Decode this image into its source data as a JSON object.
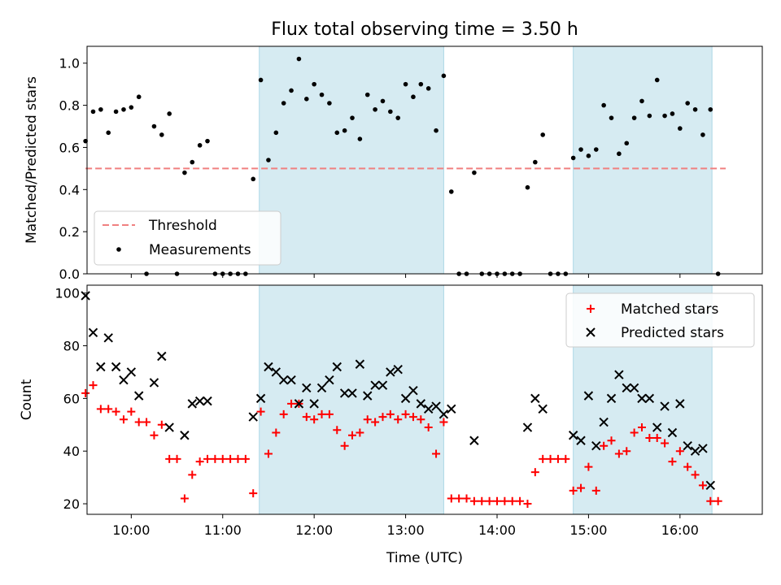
{
  "title": "Flux total observing time = 3.50 h",
  "colors": {
    "threshold": "#f08080",
    "shade": "#add8e6",
    "matched": "#ff0000",
    "predicted": "#000000",
    "measurement": "#000000"
  },
  "chart_data": [
    {
      "type": "scatter",
      "ylabel": "Matched/Predicted stars",
      "ylim": [
        0,
        1.08
      ],
      "xlim": [
        "09:31",
        "16:54"
      ],
      "yticks": [
        "0.0",
        "0.2",
        "0.4",
        "0.6",
        "0.8",
        "1.0"
      ],
      "shaded_intervals": [
        [
          "11:24",
          "13:25"
        ],
        [
          "14:50",
          "16:21"
        ]
      ],
      "threshold": {
        "value": 0.5,
        "x": [
          "09:30",
          "16:30"
        ]
      },
      "legend": [
        "Threshold",
        "Measurements"
      ],
      "legend_position": "lower left",
      "series": [
        {
          "name": "Measurements",
          "points": [
            [
              "09:30",
              0.63
            ],
            [
              "09:35",
              0.77
            ],
            [
              "09:40",
              0.78
            ],
            [
              "09:45",
              0.67
            ],
            [
              "09:50",
              0.77
            ],
            [
              "09:55",
              0.78
            ],
            [
              "10:00",
              0.79
            ],
            [
              "10:05",
              0.84
            ],
            [
              "10:10",
              0.0
            ],
            [
              "10:15",
              0.7
            ],
            [
              "10:20",
              0.66
            ],
            [
              "10:25",
              0.76
            ],
            [
              "10:30",
              0.0
            ],
            [
              "10:35",
              0.48
            ],
            [
              "10:40",
              0.53
            ],
            [
              "10:45",
              0.61
            ],
            [
              "10:50",
              0.63
            ],
            [
              "10:55",
              0.0
            ],
            [
              "11:00",
              0.0
            ],
            [
              "11:05",
              0.0
            ],
            [
              "11:10",
              0.0
            ],
            [
              "11:15",
              0.0
            ],
            [
              "11:20",
              0.45
            ],
            [
              "11:25",
              0.92
            ],
            [
              "11:30",
              0.54
            ],
            [
              "11:35",
              0.67
            ],
            [
              "11:40",
              0.81
            ],
            [
              "11:45",
              0.87
            ],
            [
              "11:50",
              1.02
            ],
            [
              "11:55",
              0.83
            ],
            [
              "12:00",
              0.9
            ],
            [
              "12:05",
              0.85
            ],
            [
              "12:10",
              0.81
            ],
            [
              "12:15",
              0.67
            ],
            [
              "12:20",
              0.68
            ],
            [
              "12:25",
              0.74
            ],
            [
              "12:30",
              0.64
            ],
            [
              "12:35",
              0.85
            ],
            [
              "12:40",
              0.78
            ],
            [
              "12:45",
              0.82
            ],
            [
              "12:50",
              0.77
            ],
            [
              "12:55",
              0.74
            ],
            [
              "13:00",
              0.9
            ],
            [
              "13:05",
              0.84
            ],
            [
              "13:10",
              0.9
            ],
            [
              "13:15",
              0.88
            ],
            [
              "13:20",
              0.68
            ],
            [
              "13:25",
              0.94
            ],
            [
              "13:30",
              0.39
            ],
            [
              "13:35",
              0.0
            ],
            [
              "13:40",
              0.0
            ],
            [
              "13:45",
              0.48
            ],
            [
              "13:50",
              0.0
            ],
            [
              "13:55",
              0.0
            ],
            [
              "14:00",
              0.0
            ],
            [
              "14:05",
              0.0
            ],
            [
              "14:10",
              0.0
            ],
            [
              "14:15",
              0.0
            ],
            [
              "14:20",
              0.41
            ],
            [
              "14:25",
              0.53
            ],
            [
              "14:30",
              0.66
            ],
            [
              "14:35",
              0.0
            ],
            [
              "14:40",
              0.0
            ],
            [
              "14:45",
              0.0
            ],
            [
              "14:50",
              0.55
            ],
            [
              "14:55",
              0.59
            ],
            [
              "15:00",
              0.56
            ],
            [
              "15:05",
              0.59
            ],
            [
              "15:10",
              0.8
            ],
            [
              "15:15",
              0.74
            ],
            [
              "15:20",
              0.57
            ],
            [
              "15:25",
              0.62
            ],
            [
              "15:30",
              0.74
            ],
            [
              "15:35",
              0.82
            ],
            [
              "15:40",
              0.75
            ],
            [
              "15:45",
              0.92
            ],
            [
              "15:50",
              0.75
            ],
            [
              "15:55",
              0.76
            ],
            [
              "16:00",
              0.69
            ],
            [
              "16:05",
              0.81
            ],
            [
              "16:10",
              0.78
            ],
            [
              "16:15",
              0.66
            ],
            [
              "16:20",
              0.78
            ],
            [
              "16:25",
              0.0
            ]
          ]
        }
      ]
    },
    {
      "type": "scatter",
      "xlabel": "Time (UTC)",
      "ylabel": "Count",
      "ylim": [
        16,
        103
      ],
      "xlim": [
        "09:31",
        "16:54"
      ],
      "yticks": [
        "20",
        "40",
        "60",
        "80",
        "100"
      ],
      "xticks": [
        "10:00",
        "11:00",
        "12:00",
        "13:00",
        "14:00",
        "15:00",
        "16:00"
      ],
      "shaded_intervals": [
        [
          "11:24",
          "13:25"
        ],
        [
          "14:50",
          "16:21"
        ]
      ],
      "legend": [
        "Matched stars",
        "Predicted stars"
      ],
      "legend_position": "upper right",
      "series": [
        {
          "name": "Matched stars",
          "points": [
            [
              "09:30",
              62
            ],
            [
              "09:35",
              65
            ],
            [
              "09:40",
              56
            ],
            [
              "09:45",
              56
            ],
            [
              "09:50",
              55
            ],
            [
              "09:55",
              52
            ],
            [
              "10:00",
              55
            ],
            [
              "10:05",
              51
            ],
            [
              "10:10",
              51
            ],
            [
              "10:15",
              46
            ],
            [
              "10:20",
              50
            ],
            [
              "10:25",
              37
            ],
            [
              "10:30",
              37
            ],
            [
              "10:35",
              22
            ],
            [
              "10:40",
              31
            ],
            [
              "10:45",
              36
            ],
            [
              "10:50",
              37
            ],
            [
              "10:55",
              37
            ],
            [
              "11:00",
              37
            ],
            [
              "11:05",
              37
            ],
            [
              "11:10",
              37
            ],
            [
              "11:15",
              37
            ],
            [
              "11:20",
              24
            ],
            [
              "11:25",
              55
            ],
            [
              "11:30",
              39
            ],
            [
              "11:35",
              47
            ],
            [
              "11:40",
              54
            ],
            [
              "11:45",
              58
            ],
            [
              "11:50",
              58
            ],
            [
              "11:55",
              53
            ],
            [
              "12:00",
              52
            ],
            [
              "12:05",
              54
            ],
            [
              "12:10",
              54
            ],
            [
              "12:15",
              48
            ],
            [
              "12:20",
              42
            ],
            [
              "12:25",
              46
            ],
            [
              "12:30",
              47
            ],
            [
              "12:35",
              52
            ],
            [
              "12:40",
              51
            ],
            [
              "12:45",
              53
            ],
            [
              "12:50",
              54
            ],
            [
              "12:55",
              52
            ],
            [
              "13:00",
              54
            ],
            [
              "13:05",
              53
            ],
            [
              "13:10",
              52
            ],
            [
              "13:15",
              49
            ],
            [
              "13:20",
              39
            ],
            [
              "13:25",
              51
            ],
            [
              "13:30",
              22
            ],
            [
              "13:35",
              22
            ],
            [
              "13:40",
              22
            ],
            [
              "13:45",
              21
            ],
            [
              "13:50",
              21
            ],
            [
              "13:55",
              21
            ],
            [
              "14:00",
              21
            ],
            [
              "14:05",
              21
            ],
            [
              "14:10",
              21
            ],
            [
              "14:15",
              21
            ],
            [
              "14:20",
              20
            ],
            [
              "14:25",
              32
            ],
            [
              "14:30",
              37
            ],
            [
              "14:35",
              37
            ],
            [
              "14:40",
              37
            ],
            [
              "14:45",
              37
            ],
            [
              "14:50",
              25
            ],
            [
              "14:55",
              26
            ],
            [
              "15:00",
              34
            ],
            [
              "15:05",
              25
            ],
            [
              "15:10",
              42
            ],
            [
              "15:15",
              44
            ],
            [
              "15:20",
              39
            ],
            [
              "15:25",
              40
            ],
            [
              "15:30",
              47
            ],
            [
              "15:35",
              49
            ],
            [
              "15:40",
              45
            ],
            [
              "15:45",
              45
            ],
            [
              "15:50",
              43
            ],
            [
              "15:55",
              36
            ],
            [
              "16:00",
              40
            ],
            [
              "16:05",
              34
            ],
            [
              "16:10",
              31
            ],
            [
              "16:15",
              27
            ],
            [
              "16:20",
              21
            ],
            [
              "16:25",
              21
            ]
          ]
        },
        {
          "name": "Predicted stars",
          "points": [
            [
              "09:30",
              99
            ],
            [
              "09:35",
              85
            ],
            [
              "09:40",
              72
            ],
            [
              "09:45",
              83
            ],
            [
              "09:50",
              72
            ],
            [
              "09:55",
              67
            ],
            [
              "10:00",
              70
            ],
            [
              "10:05",
              61
            ],
            [
              "10:15",
              66
            ],
            [
              "10:20",
              76
            ],
            [
              "10:25",
              49
            ],
            [
              "10:35",
              46
            ],
            [
              "10:40",
              58
            ],
            [
              "10:45",
              59
            ],
            [
              "10:50",
              59
            ],
            [
              "11:20",
              53
            ],
            [
              "11:25",
              60
            ],
            [
              "11:30",
              72
            ],
            [
              "11:35",
              70
            ],
            [
              "11:40",
              67
            ],
            [
              "11:45",
              67
            ],
            [
              "11:50",
              58
            ],
            [
              "11:55",
              64
            ],
            [
              "12:00",
              58
            ],
            [
              "12:05",
              64
            ],
            [
              "12:10",
              67
            ],
            [
              "12:15",
              72
            ],
            [
              "12:20",
              62
            ],
            [
              "12:25",
              62
            ],
            [
              "12:30",
              73
            ],
            [
              "12:35",
              61
            ],
            [
              "12:40",
              65
            ],
            [
              "12:45",
              65
            ],
            [
              "12:50",
              70
            ],
            [
              "12:55",
              71
            ],
            [
              "13:00",
              60
            ],
            [
              "13:05",
              63
            ],
            [
              "13:10",
              58
            ],
            [
              "13:15",
              56
            ],
            [
              "13:20",
              57
            ],
            [
              "13:25",
              54
            ],
            [
              "13:30",
              56
            ],
            [
              "13:45",
              44
            ],
            [
              "14:20",
              49
            ],
            [
              "14:25",
              60
            ],
            [
              "14:30",
              56
            ],
            [
              "14:50",
              46
            ],
            [
              "14:55",
              44
            ],
            [
              "15:00",
              61
            ],
            [
              "15:05",
              42
            ],
            [
              "15:10",
              51
            ],
            [
              "15:15",
              60
            ],
            [
              "15:20",
              69
            ],
            [
              "15:25",
              64
            ],
            [
              "15:30",
              64
            ],
            [
              "15:35",
              60
            ],
            [
              "15:40",
              60
            ],
            [
              "15:45",
              49
            ],
            [
              "15:50",
              57
            ],
            [
              "15:55",
              47
            ],
            [
              "16:00",
              58
            ],
            [
              "16:05",
              42
            ],
            [
              "16:10",
              40
            ],
            [
              "16:15",
              41
            ],
            [
              "16:20",
              27
            ]
          ]
        }
      ]
    }
  ]
}
